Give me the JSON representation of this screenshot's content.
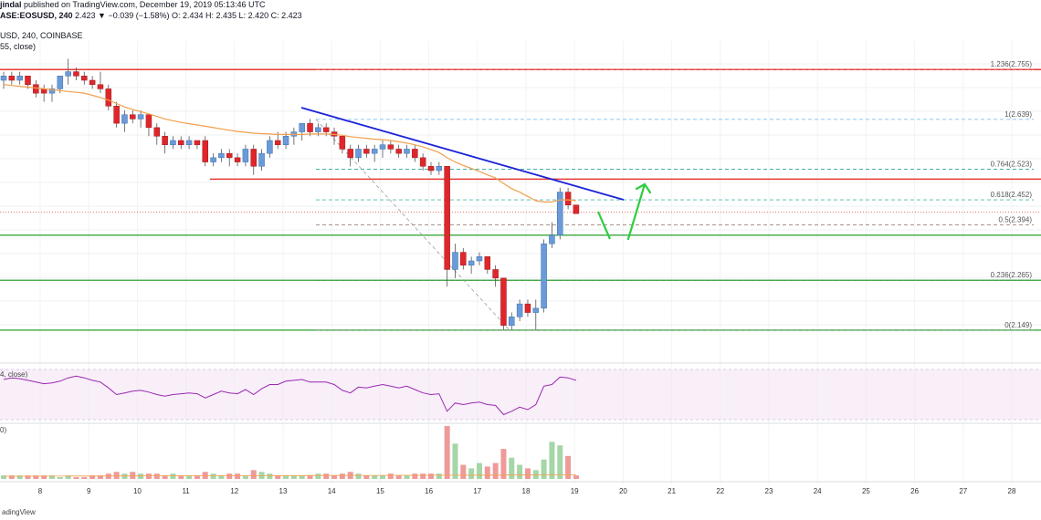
{
  "header": {
    "line1_author": "jindal",
    "line1_rest": " published on TradingView.com, December 19, 2019 05:13:46 UTC",
    "line2_symbol": "ASE:EOSUSD, 240",
    "line2_ohlc": "  2.423  ▼ −0.039 (−1.58%)  O: 2.434  H: 2.435  L: 2.420  C: 2.423",
    "line3": "USD, 240, COINBASE",
    "line4": "55, close)"
  },
  "rsi_label": "4, close)",
  "volume_label": "0)",
  "footer": "adingView",
  "colors": {
    "up": "#6a9bd8",
    "down": "#e0262b",
    "ema": "#f29f4b",
    "trend": "#1a22d8",
    "support": "#4caf50",
    "resistance": "#e53935",
    "arrow": "#2ecc40",
    "rsi_line": "#9c27b0",
    "rsi_band": "#f3e5f5"
  },
  "chart_data": {
    "type": "candlestick",
    "symbol": "EOSUSD",
    "timeframe": "240",
    "x_ticks": [
      "8",
      "9",
      "10",
      "11",
      "12",
      "13",
      "14",
      "15",
      "16",
      "17",
      "18",
      "19",
      "20",
      "21",
      "22",
      "23",
      "24",
      "25",
      "26",
      "27",
      "28"
    ],
    "ylim": [
      2.1,
      2.8
    ],
    "fib_levels": [
      {
        "label": "1.236(2.755)",
        "value": 2.755
      },
      {
        "label": "1(2.639)",
        "value": 2.639
      },
      {
        "label": "0.764(2.523)",
        "value": 2.523
      },
      {
        "label": "0.618(2.452)",
        "value": 2.452
      },
      {
        "label": "0.5(2.394)",
        "value": 2.394
      },
      {
        "label": "0.236(2.265)",
        "value": 2.265
      },
      {
        "label": "0(2.149)",
        "value": 2.149
      }
    ],
    "horizontal_lines": [
      {
        "kind": "resistance",
        "value": 2.755
      },
      {
        "kind": "resistance",
        "value": 2.5
      },
      {
        "kind": "support",
        "value": 2.37
      },
      {
        "kind": "support",
        "value": 2.265
      },
      {
        "kind": "support",
        "value": 2.149
      },
      {
        "kind": "last_price",
        "value": 2.423
      }
    ],
    "candles": [
      {
        "o": 2.73,
        "h": 2.75,
        "l": 2.71,
        "c": 2.74
      },
      {
        "o": 2.74,
        "h": 2.75,
        "l": 2.72,
        "c": 2.73
      },
      {
        "o": 2.73,
        "h": 2.75,
        "l": 2.72,
        "c": 2.74
      },
      {
        "o": 2.74,
        "h": 2.74,
        "l": 2.71,
        "c": 2.72
      },
      {
        "o": 2.72,
        "h": 2.73,
        "l": 2.69,
        "c": 2.7
      },
      {
        "o": 2.71,
        "h": 2.72,
        "l": 2.68,
        "c": 2.7
      },
      {
        "o": 2.7,
        "h": 2.72,
        "l": 2.68,
        "c": 2.71
      },
      {
        "o": 2.71,
        "h": 2.74,
        "l": 2.7,
        "c": 2.74
      },
      {
        "o": 2.74,
        "h": 2.78,
        "l": 2.72,
        "c": 2.75
      },
      {
        "o": 2.75,
        "h": 2.76,
        "l": 2.73,
        "c": 2.74
      },
      {
        "o": 2.74,
        "h": 2.75,
        "l": 2.72,
        "c": 2.73
      },
      {
        "o": 2.73,
        "h": 2.74,
        "l": 2.71,
        "c": 2.72
      },
      {
        "o": 2.72,
        "h": 2.75,
        "l": 2.7,
        "c": 2.71
      },
      {
        "o": 2.71,
        "h": 2.72,
        "l": 2.66,
        "c": 2.67
      },
      {
        "o": 2.67,
        "h": 2.68,
        "l": 2.62,
        "c": 2.63
      },
      {
        "o": 2.63,
        "h": 2.66,
        "l": 2.61,
        "c": 2.65
      },
      {
        "o": 2.65,
        "h": 2.66,
        "l": 2.63,
        "c": 2.64
      },
      {
        "o": 2.64,
        "h": 2.66,
        "l": 2.62,
        "c": 2.65
      },
      {
        "o": 2.65,
        "h": 2.65,
        "l": 2.6,
        "c": 2.62
      },
      {
        "o": 2.62,
        "h": 2.63,
        "l": 2.58,
        "c": 2.6
      },
      {
        "o": 2.6,
        "h": 2.61,
        "l": 2.56,
        "c": 2.58
      },
      {
        "o": 2.58,
        "h": 2.6,
        "l": 2.57,
        "c": 2.59
      },
      {
        "o": 2.59,
        "h": 2.6,
        "l": 2.57,
        "c": 2.58
      },
      {
        "o": 2.58,
        "h": 2.6,
        "l": 2.57,
        "c": 2.59
      },
      {
        "o": 2.59,
        "h": 2.59,
        "l": 2.57,
        "c": 2.58
      },
      {
        "o": 2.59,
        "h": 2.6,
        "l": 2.53,
        "c": 2.54
      },
      {
        "o": 2.54,
        "h": 2.56,
        "l": 2.53,
        "c": 2.55
      },
      {
        "o": 2.55,
        "h": 2.57,
        "l": 2.54,
        "c": 2.56
      },
      {
        "o": 2.56,
        "h": 2.57,
        "l": 2.53,
        "c": 2.55
      },
      {
        "o": 2.55,
        "h": 2.56,
        "l": 2.53,
        "c": 2.54
      },
      {
        "o": 2.54,
        "h": 2.58,
        "l": 2.53,
        "c": 2.57
      },
      {
        "o": 2.57,
        "h": 2.58,
        "l": 2.51,
        "c": 2.53
      },
      {
        "o": 2.53,
        "h": 2.57,
        "l": 2.52,
        "c": 2.56
      },
      {
        "o": 2.56,
        "h": 2.6,
        "l": 2.55,
        "c": 2.59
      },
      {
        "o": 2.59,
        "h": 2.61,
        "l": 2.57,
        "c": 2.58
      },
      {
        "o": 2.58,
        "h": 2.61,
        "l": 2.57,
        "c": 2.6
      },
      {
        "o": 2.6,
        "h": 2.62,
        "l": 2.58,
        "c": 2.61
      },
      {
        "o": 2.61,
        "h": 2.63,
        "l": 2.59,
        "c": 2.63
      },
      {
        "o": 2.63,
        "h": 2.64,
        "l": 2.6,
        "c": 2.61
      },
      {
        "o": 2.61,
        "h": 2.63,
        "l": 2.6,
        "c": 2.62
      },
      {
        "o": 2.62,
        "h": 2.63,
        "l": 2.6,
        "c": 2.61
      },
      {
        "o": 2.61,
        "h": 2.62,
        "l": 2.58,
        "c": 2.6
      },
      {
        "o": 2.6,
        "h": 2.6,
        "l": 2.56,
        "c": 2.57
      },
      {
        "o": 2.57,
        "h": 2.58,
        "l": 2.53,
        "c": 2.55
      },
      {
        "o": 2.55,
        "h": 2.58,
        "l": 2.54,
        "c": 2.57
      },
      {
        "o": 2.57,
        "h": 2.58,
        "l": 2.55,
        "c": 2.56
      },
      {
        "o": 2.56,
        "h": 2.58,
        "l": 2.54,
        "c": 2.57
      },
      {
        "o": 2.57,
        "h": 2.59,
        "l": 2.55,
        "c": 2.58
      },
      {
        "o": 2.58,
        "h": 2.59,
        "l": 2.56,
        "c": 2.57
      },
      {
        "o": 2.57,
        "h": 2.58,
        "l": 2.55,
        "c": 2.56
      },
      {
        "o": 2.56,
        "h": 2.58,
        "l": 2.55,
        "c": 2.57
      },
      {
        "o": 2.57,
        "h": 2.58,
        "l": 2.54,
        "c": 2.55
      },
      {
        "o": 2.55,
        "h": 2.56,
        "l": 2.52,
        "c": 2.53
      },
      {
        "o": 2.53,
        "h": 2.54,
        "l": 2.51,
        "c": 2.52
      },
      {
        "o": 2.52,
        "h": 2.54,
        "l": 2.51,
        "c": 2.53
      },
      {
        "o": 2.53,
        "h": 2.53,
        "l": 2.25,
        "c": 2.29
      },
      {
        "o": 2.29,
        "h": 2.35,
        "l": 2.27,
        "c": 2.33
      },
      {
        "o": 2.33,
        "h": 2.34,
        "l": 2.29,
        "c": 2.3
      },
      {
        "o": 2.3,
        "h": 2.32,
        "l": 2.28,
        "c": 2.31
      },
      {
        "o": 2.31,
        "h": 2.33,
        "l": 2.3,
        "c": 2.32
      },
      {
        "o": 2.32,
        "h": 2.32,
        "l": 2.28,
        "c": 2.29
      },
      {
        "o": 2.29,
        "h": 2.3,
        "l": 2.25,
        "c": 2.27
      },
      {
        "o": 2.27,
        "h": 2.27,
        "l": 2.15,
        "c": 2.16
      },
      {
        "o": 2.16,
        "h": 2.19,
        "l": 2.15,
        "c": 2.18
      },
      {
        "o": 2.18,
        "h": 2.22,
        "l": 2.17,
        "c": 2.21
      },
      {
        "o": 2.21,
        "h": 2.22,
        "l": 2.18,
        "c": 2.19
      },
      {
        "o": 2.19,
        "h": 2.22,
        "l": 2.15,
        "c": 2.2
      },
      {
        "o": 2.2,
        "h": 2.36,
        "l": 2.19,
        "c": 2.35
      },
      {
        "o": 2.35,
        "h": 2.4,
        "l": 2.34,
        "c": 2.37
      },
      {
        "o": 2.37,
        "h": 2.48,
        "l": 2.36,
        "c": 2.47
      },
      {
        "o": 2.47,
        "h": 2.48,
        "l": 2.43,
        "c": 2.44
      },
      {
        "o": 2.44,
        "h": 2.44,
        "l": 2.42,
        "c": 2.42
      }
    ],
    "ema": [
      2.72,
      2.718,
      2.716,
      2.714,
      2.712,
      2.71,
      2.708,
      2.706,
      2.704,
      2.702,
      2.7,
      2.695,
      2.69,
      2.684,
      2.676,
      2.668,
      2.662,
      2.657,
      2.652,
      2.646,
      2.64,
      2.636,
      2.632,
      2.629,
      2.626,
      2.623,
      2.62,
      2.617,
      2.614,
      2.611,
      2.609,
      2.607,
      2.606,
      2.605,
      2.604,
      2.604,
      2.604,
      2.604,
      2.605,
      2.605,
      2.605,
      2.604,
      2.602,
      2.599,
      2.597,
      2.595,
      2.593,
      2.592,
      2.59,
      2.587,
      2.584,
      2.58,
      2.575,
      2.569,
      2.562,
      2.55,
      2.54,
      2.532,
      2.525,
      2.518,
      2.51,
      2.503,
      2.49,
      2.478,
      2.47,
      2.46,
      2.45,
      2.447,
      2.447,
      2.452,
      2.452,
      2.45
    ],
    "rsi": [
      58,
      60,
      59,
      57,
      55,
      53,
      54,
      56,
      60,
      62,
      60,
      57,
      55,
      48,
      40,
      42,
      44,
      45,
      43,
      40,
      38,
      40,
      41,
      42,
      41,
      36,
      40,
      44,
      42,
      41,
      46,
      40,
      47,
      52,
      52,
      56,
      57,
      58,
      55,
      55,
      55,
      52,
      45,
      42,
      49,
      48,
      50,
      52,
      50,
      48,
      50,
      46,
      42,
      40,
      41,
      20,
      30,
      28,
      30,
      31,
      28,
      27,
      16,
      20,
      25,
      22,
      28,
      50,
      52,
      61,
      60,
      57
    ],
    "volume": [
      2,
      2,
      2,
      2,
      2,
      2,
      2,
      1,
      2,
      1,
      1,
      2,
      2,
      3,
      4,
      3,
      4,
      3,
      3,
      3,
      2,
      3,
      2,
      2,
      2,
      4,
      3,
      2,
      3,
      3,
      2,
      5,
      4,
      3,
      2,
      2,
      2,
      2,
      2,
      3,
      3,
      2,
      3,
      4,
      3,
      2,
      2,
      2,
      3,
      2,
      2,
      3,
      3,
      3,
      3,
      30,
      20,
      8,
      6,
      9,
      7,
      9,
      17,
      12,
      8,
      6,
      5,
      11,
      21,
      19,
      13,
      2
    ],
    "annotations": [
      "trend line",
      "fib retracement",
      "green arrows"
    ]
  }
}
